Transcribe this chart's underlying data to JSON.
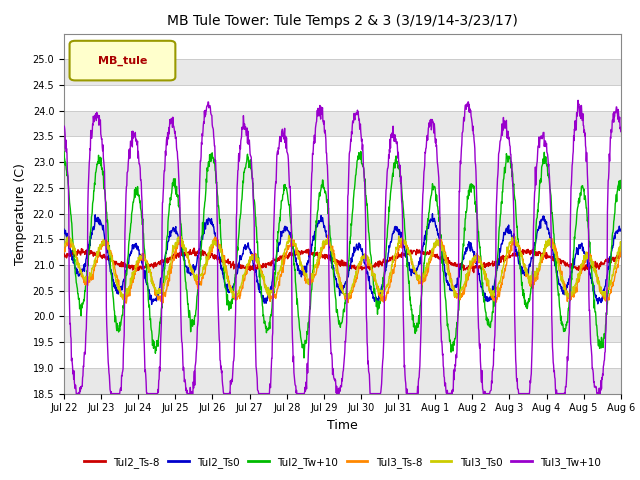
{
  "title": "MB Tule Tower: Tule Temps 2 & 3 (3/19/14-3/23/17)",
  "xlabel": "Time",
  "ylabel": "Temperature (C)",
  "ylim": [
    18.5,
    25.5
  ],
  "yticks": [
    18.5,
    19.0,
    19.5,
    20.0,
    20.5,
    21.0,
    21.5,
    22.0,
    22.5,
    23.0,
    23.5,
    24.0,
    24.5,
    25.0
  ],
  "legend_label": "MB_tule",
  "series_colors": {
    "Tul2_Ts-8": "#cc0000",
    "Tul2_Ts0": "#0000cc",
    "Tul2_Tw+10": "#00bb00",
    "Tul3_Ts-8": "#ff8800",
    "Tul3_Ts0": "#cccc00",
    "Tul3_Tw+10": "#9900cc"
  },
  "background_color": "#ffffff",
  "band_color": "#e8e8e8",
  "n_days": 15,
  "tick_labels": [
    "Jul 22",
    "Jul 23",
    "Jul 24",
    "Jul 25",
    "Jul 26",
    "Jul 27",
    "Jul 28",
    "Jul 29",
    "Jul 30",
    "Jul 31",
    "Aug 1",
    "Aug 2",
    "Aug 3",
    "Aug 4",
    "Aug 5",
    "Aug 6"
  ]
}
